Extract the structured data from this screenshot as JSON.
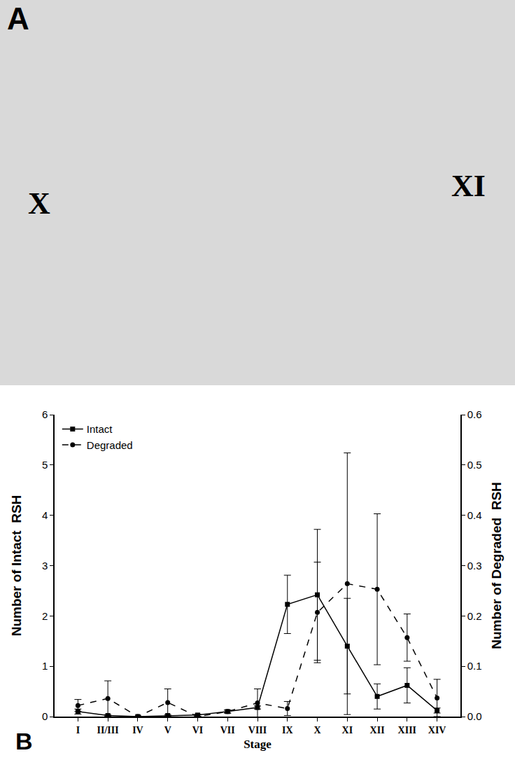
{
  "image_panel": {
    "label": "A",
    "texts": [
      "X",
      "XI"
    ]
  },
  "chart_data": {
    "type": "line",
    "annotations": [
      "B"
    ],
    "x_label": "Stage",
    "y_label": "Number of Intact  RSH",
    "y2_label": "Number of Degraded  RSH",
    "categories": [
      "I",
      "II/III",
      "IV",
      "V",
      "VI",
      "VII",
      "VIII",
      "IX",
      "X",
      "XI",
      "XII",
      "XIII",
      "XIV"
    ],
    "series": [
      {
        "name": "Intact",
        "color": "#000000",
        "marker": "square",
        "line_style": "solid",
        "values": [
          0.1,
          0.02,
          0.0,
          0.02,
          0.03,
          0.1,
          0.18,
          2.23,
          2.42,
          1.4,
          0.4,
          0.62,
          0.12
        ],
        "error": [
          0.05,
          0.02,
          0.0,
          0.02,
          0.02,
          0.03,
          0.03,
          0.58,
          1.3,
          0.95,
          0.25,
          0.35,
          0.05
        ]
      },
      {
        "name": "Degraded",
        "color": "#000000",
        "marker": "circle",
        "line_style": "dash",
        "axis": "y2",
        "values": [
          0.022,
          0.036,
          0.0,
          0.028,
          0.0,
          0.01,
          0.027,
          0.016,
          0.207,
          0.264,
          0.253,
          0.157,
          0.037
        ],
        "error": [
          0.012,
          0.035,
          0.0,
          0.027,
          0.0,
          0.003,
          0.028,
          0.014,
          0.1,
          0.26,
          0.15,
          0.047,
          0.037
        ]
      }
    ],
    "ylim": [
      0,
      6
    ],
    "yticks": [
      0,
      1,
      2,
      3,
      4,
      5,
      6
    ],
    "y2lim": [
      0,
      0.6
    ],
    "y2ticks": [
      {
        "value": 0,
        "label": "0.0"
      },
      0.1,
      0.2,
      0.3,
      0.4,
      0.5,
      0.6
    ],
    "grid": false,
    "legend": "upper left"
  }
}
